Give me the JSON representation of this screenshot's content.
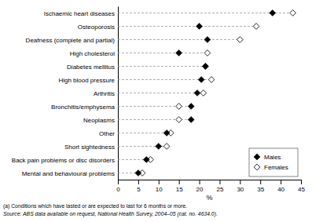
{
  "chart_data": {
    "type": "dot",
    "orientation": "horizontal",
    "categories": [
      "Ischaemic heart diseases",
      "Osteoporosis",
      "Deafness (complete and partial)",
      "High cholesterol",
      "Diabetes mellitus",
      "High blood pressure",
      "Arthritis",
      "Bronchitis/emphysema",
      "Neoplasms",
      "Other",
      "Short sightedness",
      "Back pain problems or disc disorders",
      "Mental and behavioural problems"
    ],
    "series": [
      {
        "name": "Males",
        "color": "black",
        "marker": "diamond",
        "values": [
          38.0,
          20.0,
          22.0,
          15.0,
          21.5,
          20.5,
          19.5,
          18.0,
          18.0,
          12.0,
          10.0,
          7.0,
          5.0
        ]
      },
      {
        "name": "Females",
        "color": "white",
        "marker": "diamond",
        "values": [
          43.0,
          34.0,
          30.0,
          22.0,
          21.5,
          23.0,
          21.0,
          15.0,
          15.0,
          13.0,
          12.0,
          8.0,
          6.0
        ]
      }
    ],
    "line_style": "dashed",
    "xlabel": "%",
    "xlim": [
      0,
      45
    ],
    "xticks": [
      0,
      5,
      10,
      15,
      20,
      25,
      30,
      35,
      40,
      45
    ],
    "grid": false,
    "legend": "lower right",
    "annotations": [
      "(a) Conditions which have lasted or are expected to last for 6 months or more.",
      "Source: ABS data available on request, National Health Survey, 2004–05 (cat. no. 4634.0)."
    ]
  }
}
